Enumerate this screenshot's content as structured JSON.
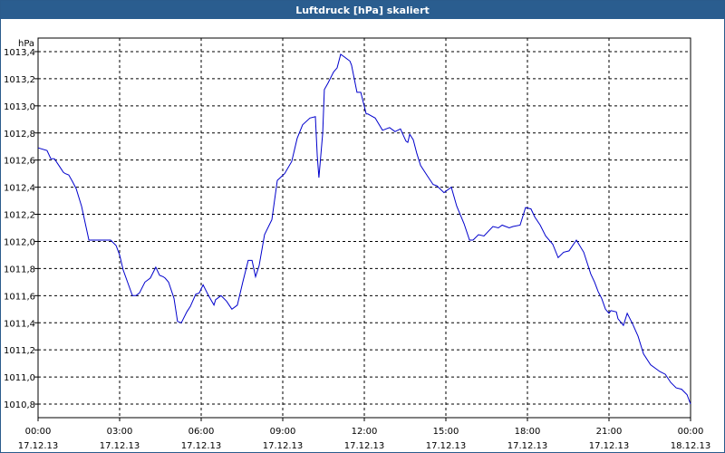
{
  "chart_data": {
    "type": "line",
    "title": "Luftdruck [hPa] skaliert",
    "ylabel": "hPa",
    "ylim": [
      1010.7,
      1013.5
    ],
    "y_ticks": [
      "1010,8",
      "1011,0",
      "1011,2",
      "1011,4",
      "1011,6",
      "1011,8",
      "1012,0",
      "1012,2",
      "1012,4",
      "1012,6",
      "1012,8",
      "1013,0",
      "1013,2",
      "1013,4"
    ],
    "x_ticks": [
      {
        "time": "00:00",
        "date": "17.12.13"
      },
      {
        "time": "03:00",
        "date": "17.12.13"
      },
      {
        "time": "06:00",
        "date": "17.12.13"
      },
      {
        "time": "09:00",
        "date": "17.12.13"
      },
      {
        "time": "12:00",
        "date": "17.12.13"
      },
      {
        "time": "15:00",
        "date": "17.12.13"
      },
      {
        "time": "18:00",
        "date": "17.12.13"
      },
      {
        "time": "21:00",
        "date": "17.12.13"
      },
      {
        "time": "00:00",
        "date": "18.12.13"
      }
    ],
    "xlim_hours": [
      0,
      24
    ],
    "grid": true,
    "line_color": "#0000cc",
    "series": [
      {
        "x": [
          0.0,
          0.33,
          0.47,
          0.6,
          0.8,
          0.93,
          1.0,
          1.13,
          1.27,
          1.4,
          1.6,
          1.87,
          2.0,
          2.33,
          2.67,
          2.87,
          3.0,
          3.13,
          3.47,
          3.6,
          3.73,
          3.93,
          4.13,
          4.33,
          4.47,
          4.6,
          4.67,
          4.8,
          5.0,
          5.13,
          5.27,
          5.47,
          5.6,
          5.8,
          5.93,
          6.07,
          6.27,
          6.47,
          6.53,
          6.73,
          6.93,
          7.13,
          7.33,
          7.53,
          7.73,
          7.87,
          8.0,
          8.13,
          8.33,
          8.6,
          8.8,
          9.07,
          9.33,
          9.53,
          9.73,
          10.0,
          10.2,
          10.27,
          10.33,
          10.47,
          10.53,
          10.67,
          10.87,
          11.0,
          11.13,
          11.27,
          11.47,
          11.53,
          11.73,
          11.87,
          12.07,
          12.13,
          12.4,
          12.67,
          12.93,
          13.13,
          13.33,
          13.53,
          13.6,
          13.67,
          13.8,
          13.93,
          14.07,
          14.33,
          14.53,
          14.67,
          14.93,
          15.2,
          15.4,
          15.67,
          15.87,
          16.0,
          16.2,
          16.4,
          16.73,
          16.93,
          17.07,
          17.33,
          17.47,
          17.73,
          17.93,
          18.13,
          18.27,
          18.47,
          18.67,
          18.93,
          19.13,
          19.33,
          19.53,
          19.8,
          20.07,
          20.33,
          20.47,
          20.6,
          20.73,
          20.87,
          21.0,
          21.07,
          21.27,
          21.33,
          21.53,
          21.67,
          21.87,
          22.07,
          22.27,
          22.53,
          22.87,
          23.07,
          23.27,
          23.47,
          23.67,
          23.87,
          24.0
        ],
        "y": [
          1012.69,
          1012.67,
          1012.61,
          1012.61,
          1012.55,
          1012.51,
          1012.5,
          1012.49,
          1012.44,
          1012.39,
          1012.26,
          1012.01,
          1012.01,
          1012.01,
          1012.01,
          1011.97,
          1011.9,
          1011.79,
          1011.6,
          1011.6,
          1011.62,
          1011.7,
          1011.73,
          1011.81,
          1011.75,
          1011.74,
          1011.73,
          1011.7,
          1011.58,
          1011.41,
          1011.4,
          1011.48,
          1011.52,
          1011.61,
          1011.62,
          1011.68,
          1011.6,
          1011.53,
          1011.57,
          1011.6,
          1011.56,
          1011.5,
          1011.53,
          1011.7,
          1011.86,
          1011.86,
          1011.74,
          1011.82,
          1012.05,
          1012.16,
          1012.45,
          1012.5,
          1012.59,
          1012.76,
          1012.86,
          1012.91,
          1012.92,
          1012.63,
          1012.47,
          1012.8,
          1013.12,
          1013.17,
          1013.25,
          1013.28,
          1013.38,
          1013.36,
          1013.33,
          1013.3,
          1013.1,
          1013.1,
          1012.94,
          1012.94,
          1012.91,
          1012.82,
          1012.84,
          1012.81,
          1012.83,
          1012.74,
          1012.73,
          1012.79,
          1012.75,
          1012.65,
          1012.56,
          1012.48,
          1012.42,
          1012.41,
          1012.36,
          1012.4,
          1012.26,
          1012.13,
          1012.01,
          1012.01,
          1012.05,
          1012.04,
          1012.11,
          1012.1,
          1012.12,
          1012.1,
          1012.11,
          1012.12,
          1012.25,
          1012.24,
          1012.18,
          1012.12,
          1012.04,
          1011.98,
          1011.88,
          1011.92,
          1011.93,
          1012.01,
          1011.92,
          1011.76,
          1011.7,
          1011.63,
          1011.58,
          1011.5,
          1011.47,
          1011.49,
          1011.48,
          1011.43,
          1011.38,
          1011.47,
          1011.39,
          1011.3,
          1011.17,
          1011.09,
          1011.04,
          1011.02,
          1010.96,
          1010.92,
          1010.91,
          1010.87,
          1010.8
        ]
      }
    ]
  }
}
